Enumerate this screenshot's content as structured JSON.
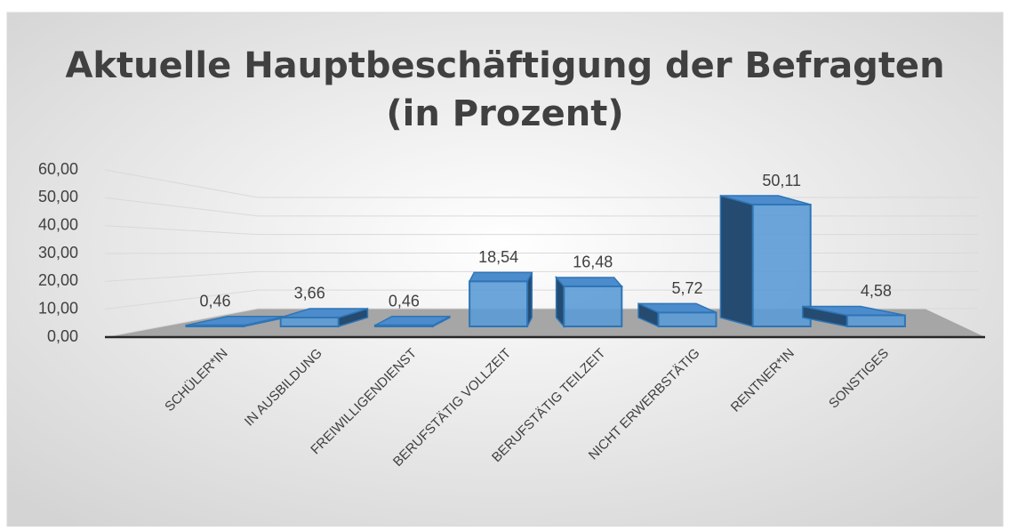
{
  "chart_data": {
    "type": "bar3d",
    "title": [
      "Aktuelle Hauptbeschäftigung der Befragten",
      "(in Prozent)"
    ],
    "categories": [
      "SCHÜLER*IN",
      "IN AUSBILDUNG",
      "FREIWILLIGENDIENST",
      "BERUFSTÄTIG VOLLZEIT",
      "BERUFSTÄTIG TEILZEIT",
      "NICHT ERWERBSTÄTIG",
      "RENTNER*IN",
      "SONSTIGES"
    ],
    "values": [
      0.46,
      3.66,
      0.46,
      18.54,
      16.48,
      5.72,
      50.11,
      4.58
    ],
    "value_labels": [
      "0,46",
      "3,66",
      "0,46",
      "18,54",
      "16,48",
      "5,72",
      "50,11",
      "4,58"
    ],
    "color": "#5b9bd5",
    "ylim": [
      0,
      60
    ],
    "yticks": [
      {
        "value": 0,
        "label": "0,00"
      },
      {
        "value": 10,
        "label": "10,00"
      },
      {
        "value": 20,
        "label": "20,00"
      },
      {
        "value": 30,
        "label": "30,00"
      },
      {
        "value": 40,
        "label": "40,00"
      },
      {
        "value": 50,
        "label": "50,00"
      },
      {
        "value": 60,
        "label": "60,00"
      }
    ],
    "grid": true
  }
}
